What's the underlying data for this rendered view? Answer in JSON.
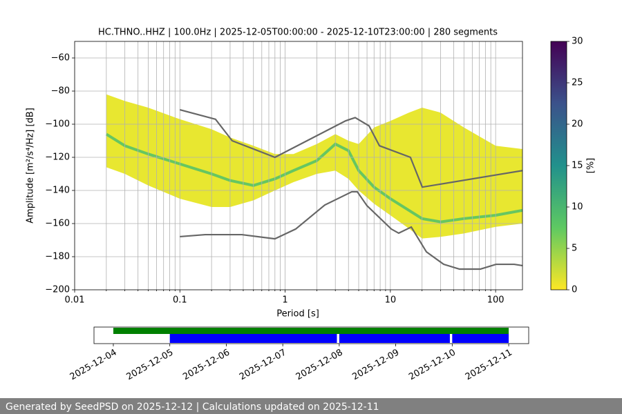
{
  "chart_data": {
    "type": "ppsd",
    "title": "HC.THNO..HHZ | 100.0Hz | 2025-12-05T00:00:00 - 2025-12-10T23:00:00 | 280 segments",
    "xlabel": "Period [s]",
    "ylabel": "Amplitude [m²/s⁴/Hz] [dB]",
    "log_x": true,
    "xlim": [
      0.01,
      180
    ],
    "xticks": [
      0.01,
      0.1,
      1,
      10,
      100
    ],
    "x_minor_ticks": [
      0.02,
      0.03,
      0.04,
      0.05,
      0.06,
      0.07,
      0.08,
      0.09,
      0.2,
      0.3,
      0.4,
      0.5,
      0.6,
      0.7,
      0.8,
      0.9,
      2,
      3,
      4,
      5,
      6,
      7,
      8,
      9,
      20,
      30,
      40,
      50,
      60,
      70,
      80,
      90
    ],
    "ylim": [
      -200,
      -50
    ],
    "yticks": [
      {
        "value": -200,
        "label": "−200"
      },
      {
        "value": -180,
        "label": "−180"
      },
      {
        "value": -160,
        "label": "−160"
      },
      {
        "value": -140,
        "label": "−140"
      },
      {
        "value": -120,
        "label": "−120"
      },
      {
        "value": -100,
        "label": "−100"
      },
      {
        "value": -80,
        "label": "−80"
      },
      {
        "value": -60,
        "label": "−60"
      }
    ],
    "grid": true,
    "density": {
      "color": "#e6e419",
      "mode_color": "#4fbf6a",
      "x": [
        0.02,
        0.03,
        0.05,
        0.1,
        0.2,
        0.3,
        0.5,
        0.8,
        1.2,
        2,
        3,
        4,
        5,
        7,
        10,
        15,
        20,
        30,
        50,
        100,
        180
      ],
      "high": [
        -82,
        -86,
        -90,
        -97,
        -103,
        -108,
        -113,
        -118,
        -118,
        -112,
        -106,
        -110,
        -112,
        -102,
        -98,
        -93,
        -90,
        -93,
        -102,
        -113,
        -115
      ],
      "low": [
        -126,
        -130,
        -137,
        -145,
        -150,
        -150,
        -146,
        -140,
        -135,
        -130,
        -128,
        -133,
        -140,
        -148,
        -155,
        -163,
        -169,
        -168,
        -166,
        -162,
        -160
      ],
      "mode": [
        -106,
        -113,
        -118,
        -124,
        -130,
        -134,
        -137,
        -133,
        -128,
        -122,
        -112,
        -116,
        -128,
        -138,
        -145,
        -152,
        -157,
        -159,
        -157,
        -155,
        -152
      ]
    },
    "series": [
      {
        "color": "#666666",
        "x": [
          0.1,
          0.218,
          0.314,
          0.8,
          3.75,
          4.63,
          6.27,
          7.87,
          15.5,
          20.1,
          180
        ],
        "values": [
          -91.3,
          -97,
          -110,
          -120,
          -98,
          -96,
          -101,
          -113,
          -120,
          -138,
          -128
        ]
      },
      {
        "color": "#666666",
        "x": [
          0.1,
          0.174,
          0.388,
          0.8,
          1.26,
          2.38,
          4.3,
          4.85,
          5.99,
          10.2,
          12,
          15.8,
          22,
          32.1,
          45.4,
          71.5,
          101,
          150,
          180
        ],
        "values": [
          -167.9,
          -166.7,
          -166.7,
          -169.2,
          -163.3,
          -148.8,
          -140.8,
          -140.8,
          -149.2,
          -163.3,
          -165.8,
          -162.1,
          -177.1,
          -184.6,
          -187.5,
          -187.5,
          -184.6,
          -184.6,
          -185.4
        ]
      }
    ],
    "colorbar": {
      "label": "[%]",
      "lim": [
        0,
        30
      ],
      "ticks": [
        0,
        5,
        10,
        15,
        20,
        25,
        30
      ]
    },
    "timeline": {
      "xlim": [
        "2025-12-03T15:47:00Z",
        "2025-12-11T08:30:00Z"
      ],
      "xticks": [
        "2025-12-04",
        "2025-12-05",
        "2025-12-06",
        "2025-12-07",
        "2025-12-08",
        "2025-12-09",
        "2025-12-10",
        "2025-12-11"
      ],
      "segments": [
        {
          "color": "#008000",
          "row": 0,
          "start": "2025-12-04T00:00:00Z",
          "end": "2025-12-11T00:00:00Z"
        },
        {
          "color": "#0000ff",
          "row": 1,
          "start": "2025-12-05T00:00:00Z",
          "end": "2025-12-07T23:00:00Z"
        },
        {
          "color": "#0000ff",
          "row": 1,
          "start": "2025-12-08T00:00:00Z",
          "end": "2025-12-09T23:00:00Z"
        },
        {
          "color": "#0000ff",
          "row": 1,
          "start": "2025-12-10T00:00:00Z",
          "end": "2025-12-11T00:00:00Z"
        }
      ]
    }
  },
  "footer": "Generated by SeedPSD on 2025-12-12 | Calculations updated on 2025-12-11"
}
